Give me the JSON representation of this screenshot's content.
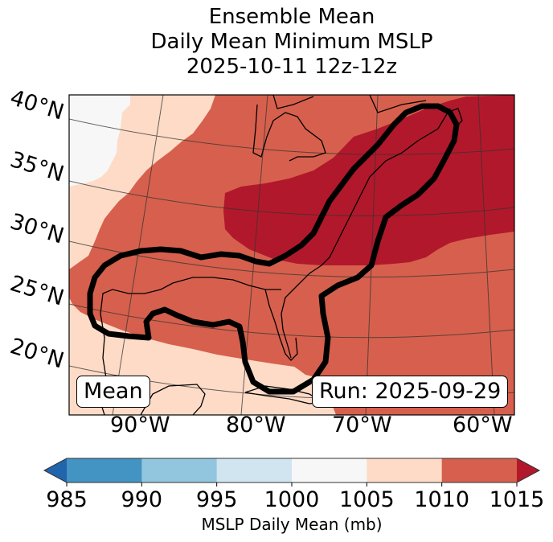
{
  "title": {
    "line1": "Ensemble Mean",
    "line2": "Daily Mean Minimum MSLP",
    "line3": "2025-10-11 12z-12z"
  },
  "map": {
    "lat_labels": [
      "40°N",
      "35°N",
      "30°N",
      "25°N",
      "20°N"
    ],
    "lon_labels": [
      "90°W",
      "80°W",
      "70°W",
      "60°W"
    ],
    "annotation_left": "Mean",
    "annotation_right": "Run: 2025-09-29",
    "contour_color": "#000000"
  },
  "colorbar": {
    "label": "MSLP Daily Mean (mb)",
    "ticks": [
      "985",
      "990",
      "995",
      "1000",
      "1005",
      "1010",
      "1015"
    ],
    "bins": [
      {
        "range": "<985",
        "color": "#2166ac"
      },
      {
        "range": "985-990",
        "color": "#4393c3"
      },
      {
        "range": "990-995",
        "color": "#92c5de"
      },
      {
        "range": "995-1000",
        "color": "#d1e5f0"
      },
      {
        "range": "1000-1005",
        "color": "#f7f7f7"
      },
      {
        "range": "1005-1010",
        "color": "#fddbc7"
      },
      {
        "range": "1010-1015",
        "color": "#d6604d"
      },
      {
        "range": ">1015",
        "color": "#b2182b"
      }
    ]
  }
}
